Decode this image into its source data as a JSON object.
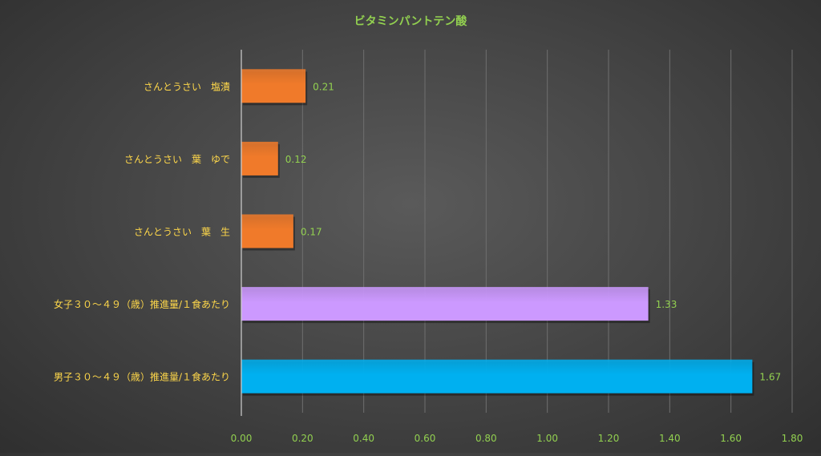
{
  "chart_data": {
    "type": "bar",
    "orientation": "horizontal",
    "title": "ビタミンパントテン酸",
    "xlabel": "",
    "ylabel": "",
    "xlim": [
      0,
      1.8
    ],
    "x_ticks": [
      "0.00",
      "0.20",
      "0.40",
      "0.60",
      "0.80",
      "1.00",
      "1.20",
      "1.40",
      "1.60",
      "1.80"
    ],
    "grid": true,
    "legend": "none",
    "categories": [
      "さんとうさい　塩漬",
      "さんとうさい　葉　ゆで",
      "さんとうさい　葉　生",
      "女子３０～４９（歳）推進量/１食あたり",
      "男子３０～４９（歳）推進量/１食あたり"
    ],
    "values": [
      0.21,
      0.12,
      0.17,
      1.33,
      1.67
    ],
    "value_labels": [
      "0.21",
      "0.12",
      "0.17",
      "1.33",
      "1.67"
    ],
    "bar_colors": [
      "#f07a2a",
      "#f07a2a",
      "#f07a2a",
      "#cc99ff",
      "#00b0f0"
    ],
    "colors": {
      "title": "#92d050",
      "category_labels": "#ffd84a",
      "tick_labels": "#92d050",
      "value_labels": "#92d050",
      "grid": "#6f6f6f",
      "axis": "#d0d0d0"
    }
  }
}
